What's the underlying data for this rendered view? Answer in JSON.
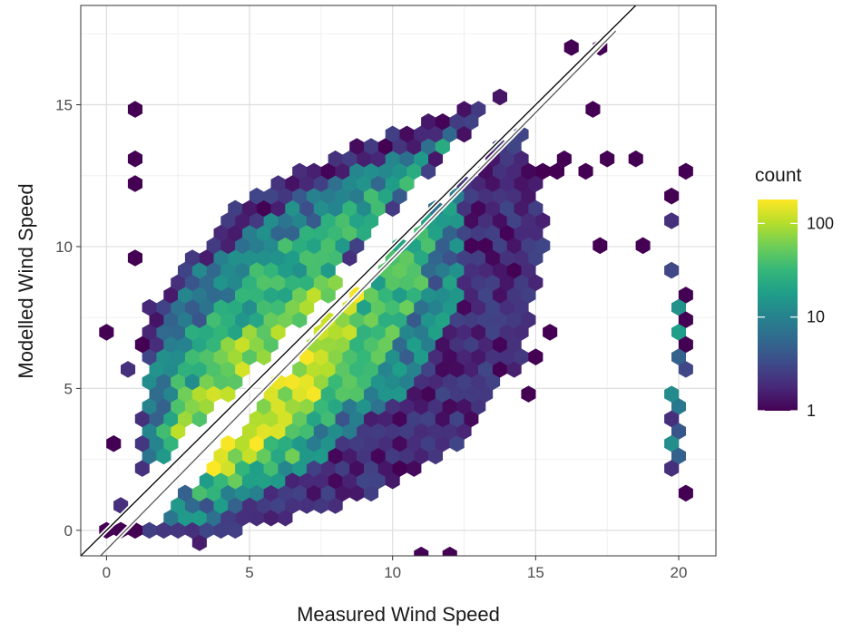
{
  "chart_data": {
    "type": "hexbin",
    "xlabel": "Measured Wind Speed",
    "ylabel": "Modelled Wind Speed",
    "xlim": [
      -0.9,
      21.3
    ],
    "ylim": [
      -0.9,
      18.5
    ],
    "x_ticks": [
      0,
      5,
      10,
      15,
      20
    ],
    "y_ticks": [
      0,
      5,
      10,
      15
    ],
    "x_tick_labels": [
      "0",
      "5",
      "10",
      "15",
      "20"
    ],
    "y_tick_labels": [
      "0",
      "5",
      "10",
      "15"
    ],
    "grid": true,
    "scale": "log10",
    "legend": {
      "title": "count",
      "placement": "right",
      "breaks": [
        1,
        10,
        100
      ],
      "break_labels": [
        "1",
        "10",
        "100"
      ],
      "range": [
        1,
        180
      ],
      "palette": [
        "#440154",
        "#482878",
        "#3e4a89",
        "#31688e",
        "#26828e",
        "#1f9e89",
        "#35b779",
        "#6ece58",
        "#b5de2b",
        "#fde725"
      ]
    },
    "reference_lines": [
      {
        "name": "1:1",
        "x": [
          -1,
          19
        ],
        "y": [
          -1,
          19
        ],
        "color": "#000000"
      },
      {
        "name": "fit",
        "x": [
          -0.5,
          17.8
        ],
        "y": [
          -1.2,
          17.6
        ],
        "color": "#555555"
      }
    ],
    "hex_width": 0.5,
    "bins": [
      [
        0,
        7,
        1
      ],
      [
        0,
        3,
        1
      ],
      [
        0,
        0,
        1
      ],
      [
        0.5,
        5.5,
        2
      ],
      [
        0.5,
        1,
        2
      ],
      [
        0.5,
        0,
        1
      ],
      [
        1,
        9.5,
        1
      ],
      [
        1,
        6.5,
        1
      ],
      [
        1,
        0,
        1
      ],
      [
        1,
        15,
        1
      ],
      [
        1,
        13.2,
        1
      ],
      [
        1,
        12.4,
        1
      ],
      [
        19.8,
        12,
        1
      ],
      [
        20,
        12.5,
        1
      ],
      [
        19.8,
        10.8,
        2
      ],
      [
        19.8,
        9,
        3
      ],
      [
        20,
        8.5,
        1
      ],
      [
        19.8,
        8,
        14
      ],
      [
        20,
        7.5,
        1
      ],
      [
        19.8,
        7,
        18
      ],
      [
        20,
        6.5,
        1
      ],
      [
        19.8,
        6,
        5
      ],
      [
        20,
        5.5,
        3
      ],
      [
        19.8,
        5,
        12
      ],
      [
        20,
        4.5,
        8
      ],
      [
        19.8,
        4,
        2
      ],
      [
        20,
        3.5,
        4
      ],
      [
        19.8,
        3,
        13
      ],
      [
        20,
        2.5,
        5
      ],
      [
        19.8,
        2,
        2
      ],
      [
        20,
        1.5,
        1
      ],
      [
        11,
        -1,
        1
      ],
      [
        12,
        -1,
        1
      ],
      [
        15.5,
        12.8,
        1
      ],
      [
        16,
        13,
        1
      ],
      [
        16.5,
        12.8,
        1
      ],
      [
        15,
        12.6,
        1
      ],
      [
        17.5,
        13,
        1
      ],
      [
        18.5,
        13,
        1
      ],
      [
        17,
        15,
        1
      ],
      [
        17,
        17,
        1
      ],
      [
        16,
        17,
        1
      ],
      [
        18.5,
        10,
        1
      ],
      [
        17,
        10,
        1
      ],
      [
        14.5,
        4.9,
        1
      ],
      [
        13.5,
        5.5,
        1
      ],
      [
        15,
        6,
        1
      ],
      [
        15.5,
        7,
        1
      ]
    ],
    "regions": [
      {
        "pts": [
          [
            1,
            1.5
          ],
          [
            14,
            15.5
          ],
          [
            12.5,
            15
          ],
          [
            8.5,
            13.5
          ],
          [
            5,
            12
          ],
          [
            1.5,
            8
          ]
        ],
        "lo": 1,
        "hi": 3
      },
      {
        "pts": [
          [
            1.5,
            2
          ],
          [
            13,
            14.8
          ],
          [
            11,
            13.5
          ],
          [
            7,
            12
          ],
          [
            3,
            9
          ],
          [
            1.5,
            6
          ]
        ],
        "lo": 3,
        "hi": 15
      },
      {
        "pts": [
          [
            2,
            2.5
          ],
          [
            12,
            13.8
          ],
          [
            10,
            12.5
          ],
          [
            6,
            10
          ],
          [
            3,
            7
          ],
          [
            2,
            4
          ]
        ],
        "lo": 12,
        "hi": 45
      },
      {
        "pts": [
          [
            2.5,
            3
          ],
          [
            9,
            9.5
          ],
          [
            7,
            8.5
          ],
          [
            4,
            6.5
          ],
          [
            2.5,
            4.5
          ]
        ],
        "lo": 40,
        "hi": 130
      },
      {
        "pts": [
          [
            1.5,
            0
          ],
          [
            14.5,
            14.5
          ],
          [
            15.5,
            10.5
          ],
          [
            14.5,
            6
          ],
          [
            12.5,
            3
          ],
          [
            9,
            1
          ],
          [
            3,
            -0.5
          ]
        ],
        "lo": 1,
        "hi": 3
      },
      {
        "pts": [
          [
            2,
            0.5
          ],
          [
            12.5,
            12.5
          ],
          [
            12.5,
            8.5
          ],
          [
            10.5,
            5
          ],
          [
            7.5,
            2.5
          ],
          [
            3.5,
            0
          ]
        ],
        "lo": 3,
        "hi": 20
      },
      {
        "pts": [
          [
            2.5,
            1
          ],
          [
            11.5,
            11.5
          ],
          [
            11,
            8
          ],
          [
            9,
            5
          ],
          [
            6.5,
            2.5
          ],
          [
            3.5,
            1
          ]
        ],
        "lo": 15,
        "hi": 60
      },
      {
        "pts": [
          [
            3,
            1.5
          ],
          [
            9,
            9
          ],
          [
            8.5,
            6.5
          ],
          [
            7,
            4
          ],
          [
            5,
            2.5
          ]
        ],
        "lo": 50,
        "hi": 180
      }
    ]
  }
}
